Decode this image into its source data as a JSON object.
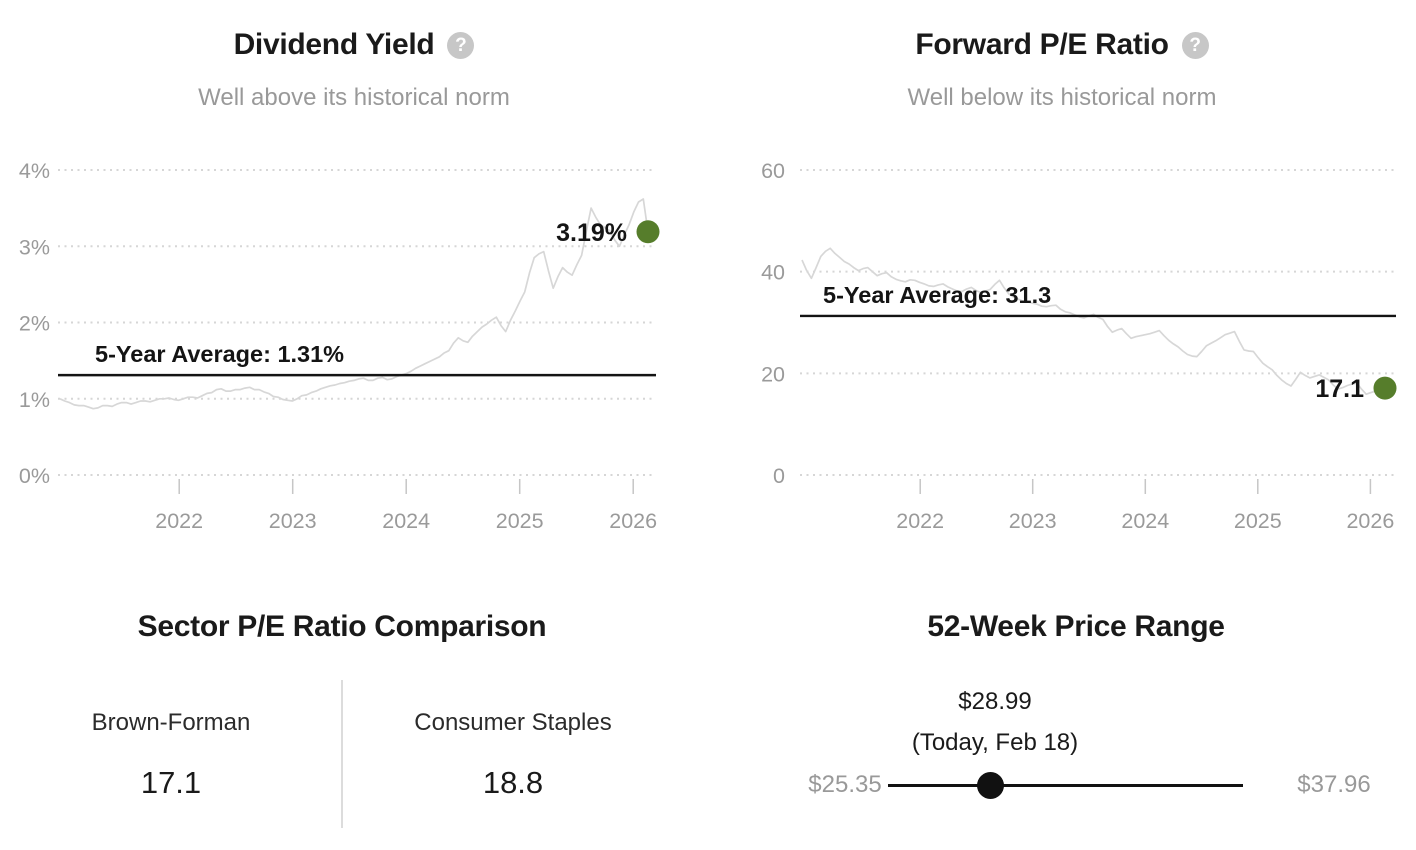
{
  "colors": {
    "background": "#ffffff",
    "title_text": "#1a1a1a",
    "subtitle_text": "#999999",
    "axis_text": "#9a9a9a",
    "gridline": "#d6d6d6",
    "series_line": "#d7d7d7",
    "average_line": "#141414",
    "marker_green": "#567d2b",
    "divider": "#dcdcdc",
    "slider_black": "#111111",
    "muted_price_text": "#999999"
  },
  "icons": {
    "help": "?"
  },
  "chart_data": [
    {
      "type": "line",
      "title": "Dividend Yield",
      "subtitle": "Well above its historical norm",
      "help_icon": "question-mark-icon",
      "y_axis_ticks": [
        {
          "v": 0,
          "label": "0%"
        },
        {
          "v": 1,
          "label": "1%"
        },
        {
          "v": 2,
          "label": "2%"
        },
        {
          "v": 3,
          "label": "3%"
        },
        {
          "v": 4,
          "label": "4%"
        }
      ],
      "x_axis_ticks": [
        {
          "v": 2022,
          "label": "2022"
        },
        {
          "v": 2023,
          "label": "2023"
        },
        {
          "v": 2024,
          "label": "2024"
        },
        {
          "v": 2025,
          "label": "2025"
        },
        {
          "v": 2026,
          "label": "2026"
        }
      ],
      "x_range": [
        2020.95,
        2026.13
      ],
      "y_range": [
        0,
        4
      ],
      "grid": true,
      "legend": "none",
      "average_line": {
        "value": 1.31,
        "label": "5-Year Average: 1.31%"
      },
      "current_point": {
        "value": 3.19,
        "label": "3.19%"
      },
      "unit": "percent",
      "values": [
        1.0,
        0.97,
        0.95,
        0.92,
        0.91,
        0.91,
        0.89,
        0.87,
        0.88,
        0.91,
        0.91,
        0.9,
        0.93,
        0.95,
        0.95,
        0.93,
        0.95,
        0.97,
        0.97,
        0.96,
        0.98,
        1.0,
        1.0,
        1.01,
        0.99,
        0.98,
        1.0,
        1.02,
        1.02,
        1.01,
        1.04,
        1.07,
        1.08,
        1.12,
        1.13,
        1.1,
        1.1,
        1.12,
        1.12,
        1.14,
        1.15,
        1.12,
        1.12,
        1.09,
        1.07,
        1.03,
        1.02,
        0.99,
        0.98,
        0.97,
        1.0,
        1.04,
        1.05,
        1.08,
        1.1,
        1.13,
        1.15,
        1.17,
        1.18,
        1.2,
        1.21,
        1.23,
        1.24,
        1.26,
        1.27,
        1.24,
        1.24,
        1.27,
        1.28,
        1.25,
        1.26,
        1.29,
        1.31,
        1.33,
        1.36,
        1.4,
        1.43,
        1.46,
        1.49,
        1.52,
        1.55,
        1.6,
        1.63,
        1.73,
        1.8,
        1.76,
        1.74,
        1.82,
        1.88,
        1.94,
        1.98,
        2.03,
        2.07,
        1.96,
        1.88,
        2.03,
        2.15,
        2.28,
        2.4,
        2.65,
        2.85,
        2.9,
        2.93,
        2.68,
        2.45,
        2.6,
        2.72,
        2.66,
        2.62,
        2.76,
        2.88,
        3.2,
        3.5,
        3.38,
        3.28,
        3.24,
        3.2,
        3.08,
        3.0,
        3.15,
        3.28,
        3.45,
        3.58,
        3.62,
        3.19
      ]
    },
    {
      "type": "line",
      "title": "Forward P/E Ratio",
      "subtitle": "Well below its historical norm",
      "help_icon": "question-mark-icon",
      "y_axis_ticks": [
        {
          "v": 0,
          "label": "0"
        },
        {
          "v": 20,
          "label": "20"
        },
        {
          "v": 40,
          "label": "40"
        },
        {
          "v": 60,
          "label": "60"
        }
      ],
      "x_axis_ticks": [
        {
          "v": 2022,
          "label": "2022"
        },
        {
          "v": 2023,
          "label": "2023"
        },
        {
          "v": 2024,
          "label": "2024"
        },
        {
          "v": 2025,
          "label": "2025"
        },
        {
          "v": 2026,
          "label": "2026"
        }
      ],
      "x_range": [
        2020.95,
        2026.13
      ],
      "y_range": [
        0,
        60
      ],
      "grid": true,
      "legend": "none",
      "average_line": {
        "value": 31.3,
        "label": "5-Year Average: 31.3"
      },
      "current_point": {
        "value": 17.1,
        "label": "17.1"
      },
      "unit": "ratio",
      "values": [
        42.3,
        40.2,
        38.7,
        40.8,
        43.0,
        44.0,
        44.6,
        43.6,
        42.8,
        42.0,
        41.5,
        40.8,
        40.2,
        40.6,
        40.8,
        40.0,
        39.2,
        39.6,
        39.8,
        39.0,
        38.5,
        38.2,
        38.0,
        38.4,
        38.3,
        37.9,
        37.6,
        37.2,
        37.1,
        37.4,
        37.6,
        37.0,
        36.6,
        36.2,
        36.1,
        36.6,
        36.9,
        36.3,
        35.9,
        36.2,
        36.5,
        37.5,
        38.3,
        36.8,
        35.6,
        35.0,
        34.6,
        34.2,
        34.1,
        33.8,
        33.6,
        33.2,
        33.1,
        33.3,
        33.4,
        32.6,
        32.1,
        31.9,
        31.5,
        31.1,
        30.9,
        31.3,
        31.6,
        31.0,
        30.6,
        29.2,
        28.1,
        28.5,
        28.8,
        27.8,
        26.9,
        27.2,
        27.4,
        27.6,
        27.8,
        28.1,
        28.4,
        27.4,
        26.5,
        25.8,
        25.2,
        24.4,
        23.7,
        23.4,
        23.3,
        24.3,
        25.4,
        25.9,
        26.4,
        27.0,
        27.6,
        27.9,
        28.2,
        26.3,
        24.6,
        24.4,
        24.3,
        23.1,
        22.0,
        21.3,
        20.7,
        19.6,
        18.7,
        18.0,
        17.5,
        18.8,
        20.2,
        19.6,
        19.1,
        19.4,
        19.7,
        19.2,
        18.7,
        17.7,
        16.9,
        17.2,
        17.6,
        17.9,
        18.1,
        16.9,
        15.9,
        16.2,
        16.5,
        16.2,
        17.1
      ]
    },
    {
      "type": "table",
      "title": "Sector P/E Ratio Comparison",
      "items": [
        {
          "label": "Brown-Forman",
          "value": "17.1"
        },
        {
          "label": "Consumer Staples",
          "value": "18.8"
        }
      ]
    },
    {
      "type": "range",
      "title": "52-Week Price Range",
      "low": {
        "value": 25.35,
        "label": "$25.35"
      },
      "high": {
        "value": 37.96,
        "label": "$37.96"
      },
      "current": {
        "value": 28.99,
        "label": "$28.99",
        "note": "(Today, Feb 18)"
      }
    }
  ]
}
